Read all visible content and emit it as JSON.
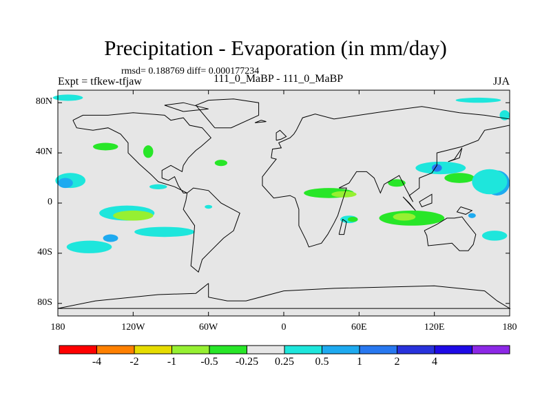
{
  "title": "Precipitation - Evaporation (in mm/day)",
  "stats": "rmsd= 0.188769 diff= 0.000177234",
  "experiment": "Expt = tfkew-tfjaw",
  "subtitle": "111_0_MaBP - 111_0_MaBP",
  "season": "JJA",
  "map": {
    "projection": "cylindrical-equidistant",
    "lon_range": [
      -180,
      180
    ],
    "lat_range": [
      -90,
      90
    ],
    "background_color": "#e6e6e6",
    "coastline_color": "#000000"
  },
  "lat_ticks": [
    {
      "value": 80,
      "label": "80N"
    },
    {
      "value": 40,
      "label": "40N"
    },
    {
      "value": 0,
      "label": "0"
    },
    {
      "value": -40,
      "label": "40S"
    },
    {
      "value": -80,
      "label": "80S"
    }
  ],
  "lon_ticks": [
    {
      "value": -180,
      "label": "180"
    },
    {
      "value": -120,
      "label": "120W"
    },
    {
      "value": -60,
      "label": "60W"
    },
    {
      "value": 0,
      "label": "0"
    },
    {
      "value": 60,
      "label": "60E"
    },
    {
      "value": 120,
      "label": "120E"
    },
    {
      "value": 180,
      "label": "180"
    }
  ],
  "colorbar": {
    "colors": [
      "#ff0000",
      "#ff8000",
      "#e6dc00",
      "#96f032",
      "#28e628",
      "#e6e6e6",
      "#1ee6dc",
      "#1eaaf0",
      "#2878f0",
      "#2832dc",
      "#1e0ae6",
      "#8c28e6"
    ],
    "labels": [
      "-4",
      "-2",
      "-1",
      "-0.5",
      "-0.25",
      "0.25",
      "0.5",
      "1",
      "2",
      "4"
    ]
  },
  "anomalies": [
    {
      "lon": -172,
      "lat": 84,
      "rx": 12,
      "ry": 2.5,
      "color": "#1ee6dc"
    },
    {
      "lon": -142,
      "lat": 45,
      "rx": 10,
      "ry": 3,
      "color": "#28e628"
    },
    {
      "lon": -108,
      "lat": 41,
      "rx": 4,
      "ry": 5,
      "color": "#28e628"
    },
    {
      "lon": -170,
      "lat": 18,
      "rx": 12,
      "ry": 6,
      "color": "#1ee6dc"
    },
    {
      "lon": -174,
      "lat": 16,
      "rx": 6,
      "ry": 4,
      "color": "#1eaaf0"
    },
    {
      "lon": -100,
      "lat": 13,
      "rx": 7,
      "ry": 2,
      "color": "#1ee6dc"
    },
    {
      "lon": -50,
      "lat": 32,
      "rx": 5,
      "ry": 2.5,
      "color": "#28e628"
    },
    {
      "lon": -125,
      "lat": -8,
      "rx": 22,
      "ry": 6,
      "color": "#1ee6dc"
    },
    {
      "lon": -120,
      "lat": -10,
      "rx": 16,
      "ry": 4,
      "color": "#96f032"
    },
    {
      "lon": -95,
      "lat": -23,
      "rx": 24,
      "ry": 4,
      "color": "#1ee6dc"
    },
    {
      "lon": -155,
      "lat": -35,
      "rx": 18,
      "ry": 5,
      "color": "#1ee6dc"
    },
    {
      "lon": -138,
      "lat": -28,
      "rx": 6,
      "ry": 3,
      "color": "#1eaaf0"
    },
    {
      "lon": -60,
      "lat": -3,
      "rx": 3,
      "ry": 1.5,
      "color": "#1ee6dc"
    },
    {
      "lon": 36,
      "lat": 8,
      "rx": 20,
      "ry": 4,
      "color": "#28e628"
    },
    {
      "lon": 48,
      "lat": 7,
      "rx": 10,
      "ry": 2.5,
      "color": "#96f032"
    },
    {
      "lon": 52,
      "lat": -13,
      "rx": 7,
      "ry": 3,
      "color": "#1ee6dc"
    },
    {
      "lon": 55,
      "lat": -13,
      "rx": 4,
      "ry": 2,
      "color": "#28e628"
    },
    {
      "lon": 90,
      "lat": 16,
      "rx": 7,
      "ry": 3,
      "color": "#28e628"
    },
    {
      "lon": 102,
      "lat": -12,
      "rx": 26,
      "ry": 6,
      "color": "#28e628"
    },
    {
      "lon": 96,
      "lat": -11,
      "rx": 9,
      "ry": 3,
      "color": "#96f032"
    },
    {
      "lon": 125,
      "lat": 28,
      "rx": 20,
      "ry": 5,
      "color": "#1ee6dc"
    },
    {
      "lon": 122,
      "lat": 28,
      "rx": 4,
      "ry": 3,
      "color": "#2878f0"
    },
    {
      "lon": 140,
      "lat": 20,
      "rx": 12,
      "ry": 4,
      "color": "#28e628"
    },
    {
      "lon": 170,
      "lat": 16,
      "rx": 10,
      "ry": 10,
      "color": "#1eaaf0"
    },
    {
      "lon": 164,
      "lat": 17,
      "rx": 14,
      "ry": 10,
      "color": "#1ee6dc"
    },
    {
      "lon": 168,
      "lat": -26,
      "rx": 10,
      "ry": 4,
      "color": "#1ee6dc"
    },
    {
      "lon": 176,
      "lat": 70,
      "rx": 4,
      "ry": 4,
      "color": "#1ee6dc"
    },
    {
      "lon": 155,
      "lat": 82,
      "rx": 18,
      "ry": 2,
      "color": "#1ee6dc"
    },
    {
      "lon": 150,
      "lat": -10,
      "rx": 3,
      "ry": 2,
      "color": "#1eaaf0"
    }
  ],
  "coastlines": [
    [
      [
        -168,
        66
      ],
      [
        -160,
        70
      ],
      [
        -140,
        70
      ],
      [
        -120,
        72
      ],
      [
        -95,
        70
      ],
      [
        -90,
        66
      ],
      [
        -80,
        68
      ],
      [
        -75,
        62
      ],
      [
        -65,
        60
      ],
      [
        -58,
        52
      ],
      [
        -66,
        45
      ],
      [
        -70,
        42
      ],
      [
        -76,
        36
      ],
      [
        -80,
        30
      ],
      [
        -81,
        25
      ],
      [
        -90,
        30
      ],
      [
        -97,
        26
      ],
      [
        -97,
        20
      ],
      [
        -92,
        18
      ],
      [
        -87,
        21
      ],
      [
        -84,
        14
      ],
      [
        -80,
        8
      ],
      [
        -77,
        8
      ],
      [
        -87,
        13
      ],
      [
        -100,
        17
      ],
      [
        -106,
        23
      ],
      [
        -115,
        31
      ],
      [
        -118,
        34
      ],
      [
        -124,
        40
      ],
      [
        -124,
        48
      ],
      [
        -130,
        55
      ],
      [
        -140,
        60
      ],
      [
        -152,
        58
      ],
      [
        -165,
        60
      ],
      [
        -168,
        66
      ]
    ],
    [
      [
        -77,
        8
      ],
      [
        -72,
        12
      ],
      [
        -60,
        10
      ],
      [
        -50,
        0
      ],
      [
        -35,
        -8
      ],
      [
        -40,
        -22
      ],
      [
        -48,
        -28
      ],
      [
        -58,
        -38
      ],
      [
        -65,
        -45
      ],
      [
        -68,
        -55
      ],
      [
        -74,
        -50
      ],
      [
        -72,
        -30
      ],
      [
        -71,
        -18
      ],
      [
        -80,
        -5
      ],
      [
        -78,
        2
      ],
      [
        -77,
        8
      ]
    ],
    [
      [
        -55,
        60
      ],
      [
        -42,
        60
      ],
      [
        -20,
        70
      ],
      [
        -20,
        80
      ],
      [
        -40,
        83
      ],
      [
        -60,
        82
      ],
      [
        -70,
        78
      ],
      [
        -55,
        60
      ]
    ],
    [
      [
        -10,
        36
      ],
      [
        -9,
        43
      ],
      [
        -2,
        44
      ],
      [
        -4,
        48
      ],
      [
        5,
        52
      ],
      [
        8,
        55
      ],
      [
        10,
        58
      ],
      [
        15,
        68
      ],
      [
        25,
        71
      ],
      [
        40,
        67
      ],
      [
        60,
        70
      ],
      [
        80,
        73
      ],
      [
        110,
        77
      ],
      [
        140,
        72
      ],
      [
        160,
        70
      ],
      [
        180,
        67
      ],
      [
        180,
        62
      ],
      [
        170,
        60
      ],
      [
        160,
        58
      ],
      [
        155,
        50
      ],
      [
        142,
        45
      ],
      [
        130,
        42
      ],
      [
        122,
        40
      ],
      [
        122,
        30
      ],
      [
        118,
        24
      ],
      [
        108,
        20
      ],
      [
        108,
        12
      ],
      [
        100,
        6
      ],
      [
        103,
        1
      ],
      [
        98,
        10
      ],
      [
        92,
        22
      ],
      [
        80,
        15
      ],
      [
        77,
        8
      ],
      [
        72,
        20
      ],
      [
        66,
        25
      ],
      [
        58,
        25
      ],
      [
        52,
        16
      ],
      [
        44,
        12
      ],
      [
        50,
        12
      ],
      [
        43,
        -10
      ],
      [
        40,
        -16
      ],
      [
        35,
        -25
      ],
      [
        30,
        -32
      ],
      [
        20,
        -35
      ],
      [
        18,
        -30
      ],
      [
        12,
        -18
      ],
      [
        12,
        -5
      ],
      [
        9,
        4
      ],
      [
        5,
        6
      ],
      [
        -8,
        4
      ],
      [
        -17,
        14
      ],
      [
        -17,
        21
      ],
      [
        -10,
        30
      ],
      [
        -6,
        35
      ],
      [
        -10,
        36
      ]
    ],
    [
      [
        112,
        -22
      ],
      [
        114,
        -26
      ],
      [
        115,
        -34
      ],
      [
        125,
        -33
      ],
      [
        134,
        -32
      ],
      [
        140,
        -38
      ],
      [
        147,
        -38
      ],
      [
        151,
        -33
      ],
      [
        153,
        -25
      ],
      [
        145,
        -15
      ],
      [
        142,
        -11
      ],
      [
        136,
        -12
      ],
      [
        130,
        -12
      ],
      [
        122,
        -17
      ],
      [
        112,
        -22
      ]
    ],
    [
      [
        -60,
        -64
      ],
      [
        -60,
        -75
      ],
      [
        -45,
        -78
      ],
      [
        -30,
        -78
      ],
      [
        0,
        -70
      ],
      [
        40,
        -68
      ],
      [
        80,
        -67
      ],
      [
        120,
        -66
      ],
      [
        160,
        -70
      ],
      [
        170,
        -78
      ],
      [
        180,
        -84
      ],
      [
        -180,
        -84
      ],
      [
        -150,
        -78
      ],
      [
        -100,
        -73
      ],
      [
        -70,
        -72
      ],
      [
        -60,
        -64
      ]
    ],
    [
      [
        -6,
        50
      ],
      [
        -2,
        51
      ],
      [
        2,
        53
      ],
      [
        -3,
        58
      ],
      [
        -6,
        56
      ],
      [
        -6,
        50
      ]
    ],
    [
      [
        44,
        -25
      ],
      [
        48,
        -25
      ],
      [
        50,
        -15
      ],
      [
        47,
        -13
      ],
      [
        44,
        -25
      ]
    ],
    [
      [
        95,
        5
      ],
      [
        105,
        -6
      ],
      [
        100,
        0
      ],
      [
        95,
        5
      ]
    ],
    [
      [
        131,
        33
      ],
      [
        140,
        36
      ],
      [
        142,
        44
      ],
      [
        136,
        35
      ],
      [
        131,
        33
      ]
    ],
    [
      [
        -23,
        64
      ],
      [
        -14,
        65
      ],
      [
        -18,
        66
      ],
      [
        -23,
        64
      ]
    ],
    [
      [
        141,
        -3
      ],
      [
        150,
        -6
      ],
      [
        145,
        -9
      ],
      [
        138,
        -7
      ],
      [
        141,
        -3
      ]
    ],
    [
      [
        -80,
        73
      ],
      [
        -60,
        75
      ],
      [
        -80,
        80
      ],
      [
        -95,
        78
      ],
      [
        -80,
        73
      ]
    ],
    [
      [
        108,
        1
      ],
      [
        118,
        7
      ],
      [
        118,
        0
      ],
      [
        110,
        -3
      ],
      [
        108,
        1
      ]
    ]
  ]
}
